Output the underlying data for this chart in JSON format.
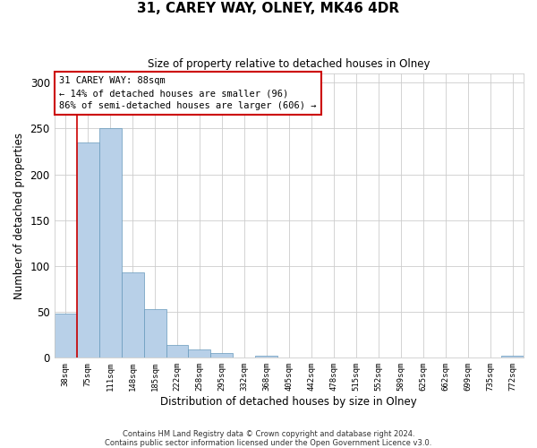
{
  "title": "31, CAREY WAY, OLNEY, MK46 4DR",
  "subtitle": "Size of property relative to detached houses in Olney",
  "xlabel": "Distribution of detached houses by size in Olney",
  "ylabel": "Number of detached properties",
  "bin_labels": [
    "38sqm",
    "75sqm",
    "111sqm",
    "148sqm",
    "185sqm",
    "222sqm",
    "258sqm",
    "295sqm",
    "332sqm",
    "368sqm",
    "405sqm",
    "442sqm",
    "478sqm",
    "515sqm",
    "552sqm",
    "589sqm",
    "625sqm",
    "662sqm",
    "699sqm",
    "735sqm",
    "772sqm"
  ],
  "bar_heights": [
    48,
    235,
    250,
    93,
    53,
    14,
    9,
    5,
    0,
    2,
    0,
    0,
    0,
    0,
    0,
    0,
    0,
    0,
    0,
    0,
    2
  ],
  "bar_color": "#b8d0e8",
  "bar_edge_color": "#6699bb",
  "property_line_x": 1,
  "property_line_color": "#cc0000",
  "ylim": [
    0,
    310
  ],
  "yticks": [
    0,
    50,
    100,
    150,
    200,
    250,
    300
  ],
  "annotation_title": "31 CAREY WAY: 88sqm",
  "annotation_line1": "← 14% of detached houses are smaller (96)",
  "annotation_line2": "86% of semi-detached houses are larger (606) →",
  "annotation_box_color": "#cc0000",
  "footer_line1": "Contains HM Land Registry data © Crown copyright and database right 2024.",
  "footer_line2": "Contains public sector information licensed under the Open Government Licence v3.0."
}
